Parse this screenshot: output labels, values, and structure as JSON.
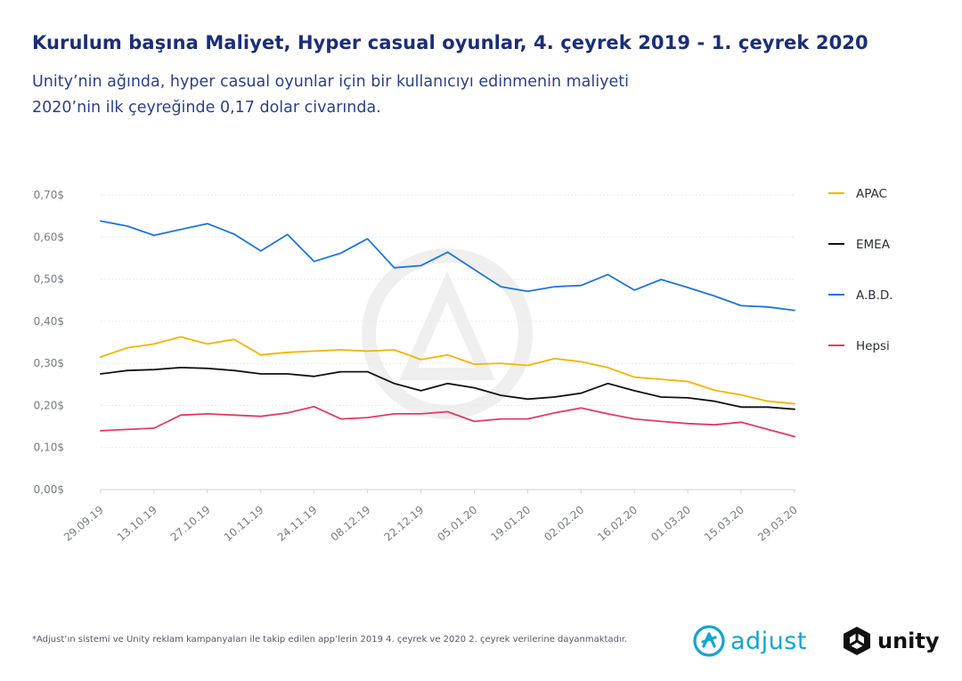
{
  "header": {
    "title": "Kurulum başına Maliyet, Hyper casual oyunlar, 4. çeyrek 2019 - 1. çeyrek 2020",
    "subtitle_line1": "Unity’nin ağında, hyper casual oyunlar için bir kullanıcıyı edinmenin maliyeti",
    "subtitle_line2": "2020’nin ilk çeyreğinde 0,17 dolar civarında."
  },
  "footnote": "*Adjust’ın sistemi ve Unity reklam kampanyaları ile takip edilen app’lerin 2019 4. çeyrek ve 2020 2. çeyrek verilerine dayanmaktadır.",
  "logos": {
    "adjust": "adjust",
    "unity": "unity",
    "adjust_color": "#12a6d6",
    "unity_color": "#111111"
  },
  "chart_data": {
    "type": "line",
    "title": "",
    "xlabel": "",
    "ylabel": "",
    "ylim": [
      0,
      0.7
    ],
    "y_ticks": [
      {
        "value": 0.0,
        "label": "0,00$"
      },
      {
        "value": 0.1,
        "label": "0,10$"
      },
      {
        "value": 0.2,
        "label": "0,20$"
      },
      {
        "value": 0.3,
        "label": "0,30$"
      },
      {
        "value": 0.4,
        "label": "0,40$"
      },
      {
        "value": 0.5,
        "label": "0,50$"
      },
      {
        "value": 0.6,
        "label": "0,60$"
      },
      {
        "value": 0.7,
        "label": "0,70$"
      }
    ],
    "x_labels": [
      "29.09.19",
      "13.10.19",
      "27.10.19",
      "10.11.19",
      "24.11.19",
      "08.12.19",
      "22.12.19",
      "05.01.20",
      "19.01.20",
      "02.02.20",
      "16.02.20",
      "01.03.20",
      "15.03.20",
      "29.03.20"
    ],
    "grid": true,
    "legend_position": "right",
    "series": [
      {
        "name": "APAC",
        "color": "#f5b400",
        "values": [
          0.315,
          0.337,
          0.346,
          0.363,
          0.346,
          0.357,
          0.32,
          0.326,
          0.329,
          0.332,
          0.329,
          0.332,
          0.309,
          0.32,
          0.298,
          0.3,
          0.295,
          0.311,
          0.304,
          0.29,
          0.267,
          0.262,
          0.257,
          0.236,
          0.225,
          0.21,
          0.204
        ]
      },
      {
        "name": "EMEA",
        "color": "#111111",
        "values": [
          0.275,
          0.283,
          0.285,
          0.29,
          0.288,
          0.283,
          0.275,
          0.275,
          0.269,
          0.28,
          0.28,
          0.252,
          0.235,
          0.252,
          0.242,
          0.224,
          0.215,
          0.22,
          0.229,
          0.252,
          0.235,
          0.22,
          0.218,
          0.21,
          0.196,
          0.196,
          0.191
        ]
      },
      {
        "name": "A.B.D.",
        "color": "#1b75e0",
        "values": [
          0.638,
          0.626,
          0.604,
          0.618,
          0.632,
          0.607,
          0.567,
          0.606,
          0.542,
          0.562,
          0.596,
          0.527,
          0.532,
          0.564,
          0.523,
          0.482,
          0.471,
          0.482,
          0.485,
          0.511,
          0.474,
          0.499,
          0.48,
          0.46,
          0.437,
          0.434,
          0.426
        ]
      },
      {
        "name": "Hepsi",
        "color": "#e23c5f",
        "values": [
          0.14,
          0.143,
          0.146,
          0.177,
          0.18,
          0.177,
          0.174,
          0.182,
          0.197,
          0.168,
          0.171,
          0.18,
          0.18,
          0.185,
          0.162,
          0.168,
          0.168,
          0.182,
          0.194,
          0.18,
          0.168,
          0.162,
          0.157,
          0.154,
          0.16,
          0.143,
          0.126
        ]
      }
    ]
  }
}
